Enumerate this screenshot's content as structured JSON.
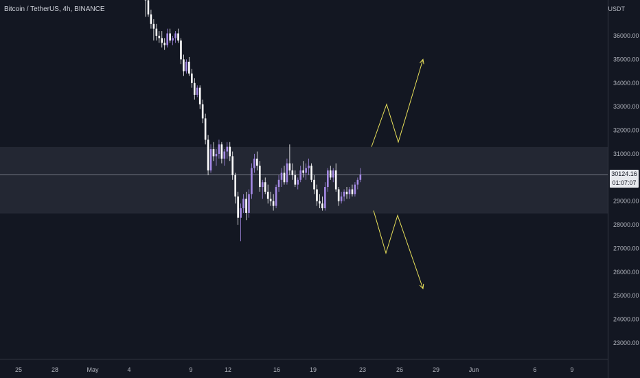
{
  "header": {
    "symbol": "Bitcoin / TetherUS, 4h, BINANCE",
    "currency": "USDT"
  },
  "price_label": {
    "price": "30124.16",
    "countdown": "01:07:07"
  },
  "colors": {
    "background": "#131722",
    "axis_text": "#b2b5be",
    "candle_up": "#a58ae6",
    "candle_down": "#ffffff",
    "zone_fill": "#2a2e39",
    "projection": "#e8e05a",
    "price_line": "#9598a1"
  },
  "chart_data": {
    "type": "candlestick",
    "title": "",
    "xlabel": "",
    "ylabel": "",
    "ylim": [
      22400,
      37500
    ],
    "y_ticks": [
      23000,
      24000,
      25000,
      26000,
      27000,
      28000,
      29000,
      30000,
      31000,
      32000,
      33000,
      34000,
      35000,
      36000
    ],
    "x_tick_labels": [
      "25",
      "28",
      "May",
      "4",
      "9",
      "12",
      "16",
      "19",
      "23",
      "26",
      "29",
      "Jun",
      "6",
      "9"
    ],
    "current_price": 30124.16,
    "grid": false,
    "zones": [
      {
        "low": 28480,
        "high": 31290
      }
    ],
    "projections": [
      {
        "name": "",
        "points": [
          [
            31300,
            0
          ],
          [
            33100,
            0
          ],
          [
            31500,
            0
          ],
          [
            35000,
            0
          ]
        ]
      },
      {
        "name": "",
        "points": [
          [
            28600,
            0
          ],
          [
            26800,
            0
          ],
          [
            28400,
            0
          ],
          [
            25300,
            0
          ]
        ]
      }
    ],
    "candles": [
      [
        37800,
        38300,
        36800,
        37500
      ],
      [
        37500,
        37700,
        36800,
        36900
      ],
      [
        36900,
        37100,
        36300,
        36500
      ],
      [
        36500,
        36700,
        35800,
        36300
      ],
      [
        36300,
        36500,
        35800,
        36000
      ],
      [
        36000,
        36200,
        35700,
        35900
      ],
      [
        35900,
        36200,
        35500,
        35700
      ],
      [
        35700,
        35900,
        35400,
        35600
      ],
      [
        35600,
        36300,
        35500,
        36100
      ],
      [
        36100,
        36300,
        35700,
        35800
      ],
      [
        35800,
        36000,
        35600,
        35900
      ],
      [
        35900,
        36200,
        35700,
        36100
      ],
      [
        36100,
        36300,
        35700,
        35800
      ],
      [
        35800,
        35900,
        34800,
        35000
      ],
      [
        35000,
        35200,
        34300,
        34500
      ],
      [
        34500,
        35000,
        34400,
        34900
      ],
      [
        34900,
        35100,
        34300,
        34400
      ],
      [
        34400,
        34600,
        33800,
        34000
      ],
      [
        34000,
        34200,
        33300,
        33500
      ],
      [
        33500,
        33900,
        33400,
        33800
      ],
      [
        33800,
        33900,
        32900,
        33100
      ],
      [
        33100,
        33300,
        32300,
        32500
      ],
      [
        32500,
        32700,
        31400,
        31600
      ],
      [
        31600,
        31800,
        30100,
        30300
      ],
      [
        30300,
        31400,
        30200,
        31200
      ],
      [
        31200,
        31500,
        30700,
        30900
      ],
      [
        30900,
        31200,
        30500,
        31000
      ],
      [
        31000,
        31600,
        30800,
        31400
      ],
      [
        31400,
        31500,
        30600,
        30800
      ],
      [
        30800,
        31200,
        30500,
        31100
      ],
      [
        31100,
        31500,
        30800,
        31300
      ],
      [
        31300,
        31500,
        30700,
        30900
      ],
      [
        30900,
        31100,
        29900,
        30100
      ],
      [
        30100,
        30200,
        28900,
        29200
      ],
      [
        29200,
        29400,
        28000,
        28300
      ],
      [
        28300,
        28900,
        27300,
        28700
      ],
      [
        28700,
        29300,
        28500,
        29100
      ],
      [
        29100,
        29400,
        28200,
        28500
      ],
      [
        28500,
        29500,
        28300,
        29300
      ],
      [
        29300,
        30600,
        29100,
        30400
      ],
      [
        30400,
        31000,
        30200,
        30800
      ],
      [
        30800,
        31100,
        30300,
        30500
      ],
      [
        30500,
        30700,
        29400,
        29600
      ],
      [
        29600,
        29900,
        29100,
        29800
      ],
      [
        29800,
        30000,
        29300,
        29400
      ],
      [
        29400,
        29700,
        28900,
        29100
      ],
      [
        29100,
        29400,
        28800,
        29000
      ],
      [
        29000,
        29300,
        28600,
        28800
      ],
      [
        28800,
        29700,
        28700,
        29600
      ],
      [
        29600,
        30100,
        29400,
        29900
      ],
      [
        29900,
        30400,
        29600,
        30200
      ],
      [
        30200,
        30500,
        29700,
        29800
      ],
      [
        29800,
        30800,
        29700,
        30600
      ],
      [
        30600,
        31400,
        30100,
        30300
      ],
      [
        30300,
        30600,
        29900,
        30100
      ],
      [
        30100,
        30300,
        29600,
        29700
      ],
      [
        29700,
        30000,
        29500,
        29900
      ],
      [
        29900,
        30500,
        29800,
        30300
      ],
      [
        30300,
        30700,
        30000,
        30200
      ],
      [
        30200,
        30600,
        29900,
        30400
      ],
      [
        30400,
        30800,
        30100,
        30500
      ],
      [
        30500,
        30600,
        29800,
        29900
      ],
      [
        29900,
        30100,
        29300,
        29500
      ],
      [
        29500,
        29700,
        28800,
        29000
      ],
      [
        29000,
        29300,
        28700,
        28900
      ],
      [
        28900,
        29200,
        28600,
        28700
      ],
      [
        28700,
        29800,
        28600,
        29600
      ],
      [
        29600,
        30400,
        29400,
        30300
      ],
      [
        30300,
        30500,
        29900,
        30000
      ],
      [
        30000,
        30400,
        29800,
        30300
      ],
      [
        30300,
        30600,
        29400,
        29500
      ],
      [
        29500,
        29600,
        28800,
        29000
      ],
      [
        29000,
        29400,
        28900,
        29200
      ],
      [
        29200,
        29500,
        29000,
        29400
      ],
      [
        29400,
        29600,
        29100,
        29300
      ],
      [
        29300,
        29600,
        29100,
        29500
      ],
      [
        29500,
        29700,
        29200,
        29300
      ],
      [
        29300,
        29800,
        29200,
        29700
      ],
      [
        29700,
        30000,
        29500,
        29900
      ],
      [
        29900,
        30400,
        29800,
        30124.16
      ]
    ]
  }
}
